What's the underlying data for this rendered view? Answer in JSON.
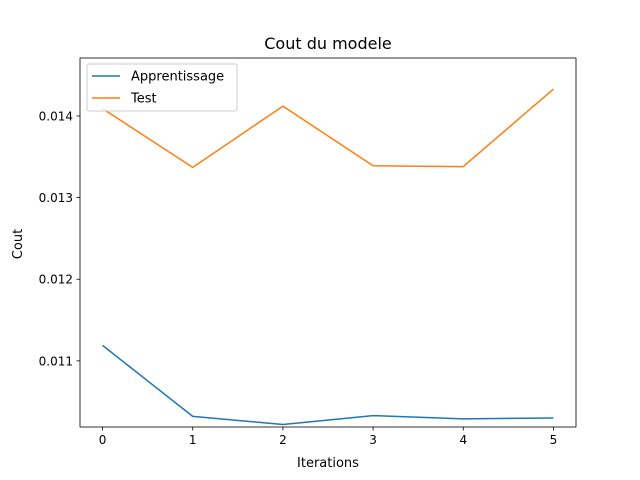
{
  "chart_data": {
    "type": "line",
    "title": "Cout du modele",
    "xlabel": "Iterations",
    "ylabel": "Cout",
    "x": [
      0,
      1,
      2,
      3,
      4,
      5
    ],
    "xlim": [
      -0.25,
      5.25
    ],
    "ylim": [
      0.01019,
      0.01471
    ],
    "xticks": [
      0,
      1,
      2,
      3,
      4,
      5
    ],
    "xtick_labels": [
      "0",
      "1",
      "2",
      "3",
      "4",
      "5"
    ],
    "yticks": [
      0.011,
      0.012,
      0.013,
      0.014
    ],
    "ytick_labels": [
      "0.011",
      "0.012",
      "0.013",
      "0.014"
    ],
    "grid": false,
    "legend_position": "upper-left",
    "series": [
      {
        "name": "Apprentissage",
        "color": "#1f77b4",
        "values": [
          0.01119,
          0.01032,
          0.01022,
          0.01033,
          0.01029,
          0.0103
        ]
      },
      {
        "name": "Test",
        "color": "#ff7f0e",
        "values": [
          0.01409,
          0.01337,
          0.01412,
          0.01339,
          0.01338,
          0.01433
        ]
      }
    ]
  }
}
